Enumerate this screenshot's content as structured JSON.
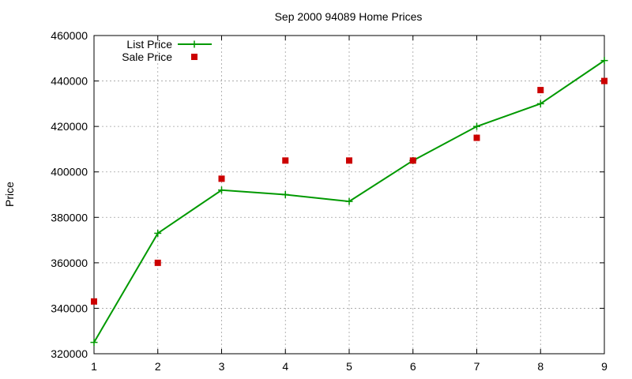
{
  "chart_data": {
    "type": "line",
    "title": "Sep 2000 94089 Home Prices",
    "xlabel": "",
    "ylabel": "Price",
    "xlim": [
      1,
      9
    ],
    "ylim": [
      320000,
      460000
    ],
    "x_ticks": [
      1,
      2,
      3,
      4,
      5,
      6,
      7,
      8,
      9
    ],
    "y_ticks": [
      320000,
      340000,
      360000,
      380000,
      400000,
      420000,
      440000,
      460000
    ],
    "grid": true,
    "legend_position": "top-left",
    "x": [
      1,
      2,
      3,
      4,
      5,
      6,
      7,
      8,
      9
    ],
    "series": [
      {
        "name": "List Price",
        "style": "linespoints",
        "marker": "plus",
        "color": "#009900",
        "values": [
          325000,
          373000,
          392000,
          390000,
          387000,
          405000,
          420000,
          430000,
          449000
        ]
      },
      {
        "name": "Sale Price",
        "style": "points",
        "marker": "square",
        "color": "#cc0000",
        "values": [
          343000,
          360000,
          397000,
          405000,
          405000,
          405000,
          415000,
          436000,
          440000
        ]
      }
    ]
  }
}
